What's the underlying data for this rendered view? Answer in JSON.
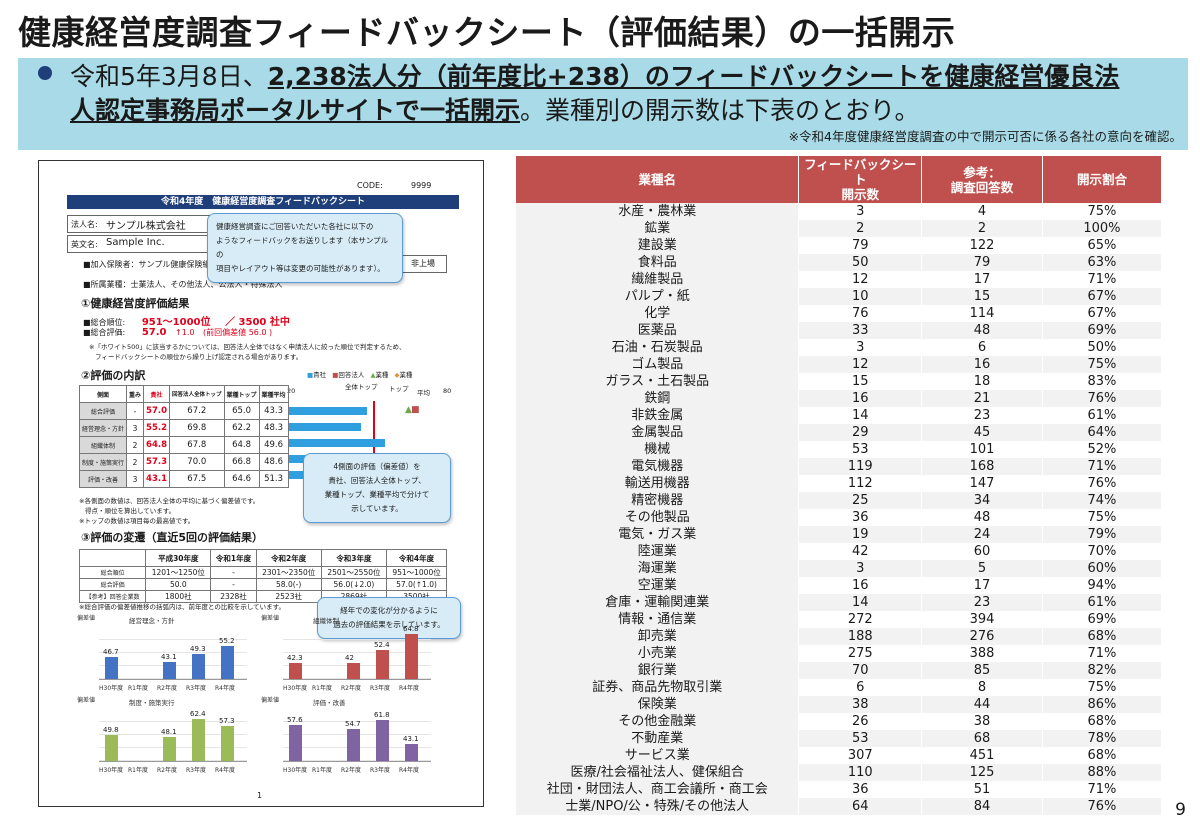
{
  "title": "健康経営度調査フィードバックシート（評価結果）の一括開示",
  "banner": {
    "line1_prefix": "令和5年3月8日、",
    "line1_bold": "2,238法人分（前年度比+238）のフィードバックシートを健康経営優良法",
    "line2_bold": "人認定事務局ポータルサイトで一括開示",
    "line2_suffix": "。業種別の開示数は下表のとおり。",
    "note": "※令和4年度健康経営度調査の中で開示可否に係る各社の意向を確認。"
  },
  "sheet": {
    "code_label": "CODE:",
    "code_value": "9999",
    "header": "令和4年度　健康経営度調査フィードバックシート",
    "name_label": "法人名:",
    "name_value": "サンプル株式会社",
    "en_label": "英文名:",
    "en_value": "Sample Inc.",
    "insurer": "■加入保険者：サンプル健康保険組合",
    "industry": "■所属業種：士業法人、その他法人、公法人・特殊法人",
    "listing": "非上場",
    "callout1": "健康経営調査にご回答いただいた各社に以下の\nようなフィードバックをお送りします（本サンプルの\n項目やレイアウト等は変更の可能性があります）。",
    "sec1": "①健康経営度評価結果",
    "rank_label": "■総合順位:",
    "rank_value": "951～1000位",
    "rank_total": "／ 3500 社中",
    "score_label": "■総合評価:",
    "score_value": "57.0",
    "score_change": "↑1.0",
    "score_prev": "(前回偏差値 56.0 )",
    "note1": "※「ホワイト500」に該当するかについては、回答法人全体ではなく申請法人に絞った順位で判定するため、",
    "note1b": "フィードバックシートの順位から繰り上げ認定される場合があります。",
    "sec2": "②評価の内訳",
    "legend": [
      "貴社",
      "回答法人",
      "業種",
      "業種"
    ],
    "axis": [
      "20",
      "全体トップ",
      "トップ",
      "平均",
      "80"
    ],
    "breakdown_head": [
      "側面",
      "重み",
      "貴社",
      "回答法人全体トップ",
      "業種トップ",
      "業種平均"
    ],
    "breakdown": [
      [
        "総合評価",
        "-",
        "57.0",
        "67.2",
        "65.0",
        "43.3"
      ],
      [
        "経営理念・方針",
        "3",
        "55.2",
        "69.8",
        "62.2",
        "48.3"
      ],
      [
        "組織体制",
        "2",
        "64.8",
        "67.8",
        "64.8",
        "49.6"
      ],
      [
        "制度・施策実行",
        "2",
        "57.3",
        "70.0",
        "66.8",
        "48.6"
      ],
      [
        "評価・改善",
        "3",
        "43.1",
        "67.5",
        "64.6",
        "51.3"
      ]
    ],
    "callout2": "4側面の評価（偏差値）を\n貴社、回答法人全体トップ、\n業種トップ、業種平均で分けて\n示しています。",
    "note2": "※各側面の数値は、回答法人全体の平均に基づく偏差値です。",
    "note2b": "得点・順位を算出しています。",
    "note2c": "※トップの数値は項目毎の最高値です。",
    "sec3": "③評価の変遷（直近5回の評価結果）",
    "hist_head": [
      "",
      "平成30年度",
      "令和1年度",
      "令和2年度",
      "令和3年度",
      "令和4年度"
    ],
    "hist": [
      [
        "総合順位",
        "1201～1250位",
        "-",
        "2301～2350位",
        "2501～2550位",
        "951～1000位"
      ],
      [
        "総合評価",
        "50.0",
        "-",
        "58.0(-)",
        "56.0(↓2.0)",
        "57.0(↑1.0)"
      ],
      [
        "【参考】回答企業数",
        "1800社",
        "2328社",
        "2523社",
        "2869社",
        "3500社"
      ]
    ],
    "note3": "※総合評価の偏差値推移の括弧内は、前年度との比較を示しています。",
    "callout3": "経年での変化が分かるように\n過去の評価結果を示しています。",
    "chart_titles": [
      "経営理念・方針",
      "組織体制",
      "制度・施策実行",
      "評価・改善"
    ],
    "chart_axis_label": "偏差値",
    "years": [
      "H30年度",
      "R1年度",
      "R2年度",
      "R3年度",
      "R4年度"
    ],
    "page": "1"
  },
  "table": {
    "headers": [
      "業種名",
      "フィードバックシート\n開示数",
      "参考：\n調査回答数",
      "開示割合"
    ],
    "rows": [
      [
        "水産・農林業",
        "3",
        "4",
        "75%"
      ],
      [
        "鉱業",
        "2",
        "2",
        "100%"
      ],
      [
        "建設業",
        "79",
        "122",
        "65%"
      ],
      [
        "食料品",
        "50",
        "79",
        "63%"
      ],
      [
        "繊維製品",
        "12",
        "17",
        "71%"
      ],
      [
        "パルプ・紙",
        "10",
        "15",
        "67%"
      ],
      [
        "化学",
        "76",
        "114",
        "67%"
      ],
      [
        "医薬品",
        "33",
        "48",
        "69%"
      ],
      [
        "石油・石炭製品",
        "3",
        "6",
        "50%"
      ],
      [
        "ゴム製品",
        "12",
        "16",
        "75%"
      ],
      [
        "ガラス・土石製品",
        "15",
        "18",
        "83%"
      ],
      [
        "鉄鋼",
        "16",
        "21",
        "76%"
      ],
      [
        "非鉄金属",
        "14",
        "23",
        "61%"
      ],
      [
        "金属製品",
        "29",
        "45",
        "64%"
      ],
      [
        "機械",
        "53",
        "101",
        "52%"
      ],
      [
        "電気機器",
        "119",
        "168",
        "71%"
      ],
      [
        "輸送用機器",
        "112",
        "147",
        "76%"
      ],
      [
        "精密機器",
        "25",
        "34",
        "74%"
      ],
      [
        "その他製品",
        "36",
        "48",
        "75%"
      ],
      [
        "電気・ガス業",
        "19",
        "24",
        "79%"
      ],
      [
        "陸運業",
        "42",
        "60",
        "70%"
      ],
      [
        "海運業",
        "3",
        "5",
        "60%"
      ],
      [
        "空運業",
        "16",
        "17",
        "94%"
      ],
      [
        "倉庫・運輸関連業",
        "14",
        "23",
        "61%"
      ],
      [
        "情報・通信業",
        "272",
        "394",
        "69%"
      ],
      [
        "卸売業",
        "188",
        "276",
        "68%"
      ],
      [
        "小売業",
        "275",
        "388",
        "71%"
      ],
      [
        "銀行業",
        "70",
        "85",
        "82%"
      ],
      [
        "証券、商品先物取引業",
        "6",
        "8",
        "75%"
      ],
      [
        "保険業",
        "38",
        "44",
        "86%"
      ],
      [
        "その他金融業",
        "26",
        "38",
        "68%"
      ],
      [
        "不動産業",
        "53",
        "68",
        "78%"
      ],
      [
        "サービス業",
        "307",
        "451",
        "68%"
      ],
      [
        "医療/社会福祉法人、健保組合",
        "110",
        "125",
        "88%"
      ],
      [
        "社団・財団法人、商工会議所・商工会",
        "36",
        "51",
        "71%"
      ],
      [
        "士業/NPO/公・特殊/その他法人",
        "64",
        "84",
        "76%"
      ]
    ]
  },
  "chart_data": [
    {
      "type": "bar",
      "title": "経営理念・方針",
      "categories": [
        "H30年度",
        "R1年度",
        "R2年度",
        "R3年度",
        "R4年度"
      ],
      "values": [
        46.7,
        null,
        43.1,
        49.3,
        55.2
      ],
      "color": "#4472c4"
    },
    {
      "type": "bar",
      "title": "組織体制",
      "categories": [
        "H30年度",
        "R1年度",
        "R2年度",
        "R3年度",
        "R4年度"
      ],
      "values": [
        42.3,
        null,
        42.0,
        52.4,
        64.8
      ],
      "color": "#c0504d"
    },
    {
      "type": "bar",
      "title": "制度・施策実行",
      "categories": [
        "H30年度",
        "R1年度",
        "R2年度",
        "R3年度",
        "R4年度"
      ],
      "values": [
        49.8,
        null,
        48.1,
        62.4,
        57.3
      ],
      "color": "#9bbb59"
    },
    {
      "type": "bar",
      "title": "評価・改善",
      "categories": [
        "H30年度",
        "R1年度",
        "R2年度",
        "R3年度",
        "R4年度"
      ],
      "values": [
        57.6,
        null,
        54.7,
        61.8,
        43.1
      ],
      "color": "#8064a2"
    }
  ],
  "page_number": "9"
}
